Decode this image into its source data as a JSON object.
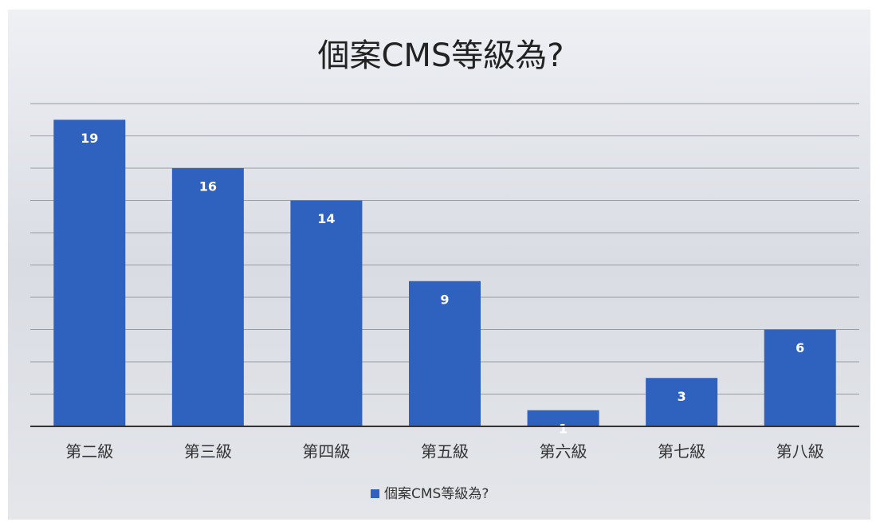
{
  "chart_data": {
    "type": "bar",
    "title": "個案CMS等級為?",
    "categories": [
      "第二級",
      "第三級",
      "第四級",
      "第五級",
      "第六級",
      "第七級",
      "第八級"
    ],
    "series": [
      {
        "name": "個案CMS等級為?",
        "color": "#2f62bf",
        "values": [
          19,
          16,
          14,
          9,
          1,
          3,
          6
        ]
      }
    ],
    "ylim": [
      0,
      20
    ],
    "yticks": [
      0,
      2,
      4,
      6,
      8,
      10,
      12,
      14,
      16,
      18,
      20
    ],
    "grid": true,
    "legend": "bottom"
  }
}
